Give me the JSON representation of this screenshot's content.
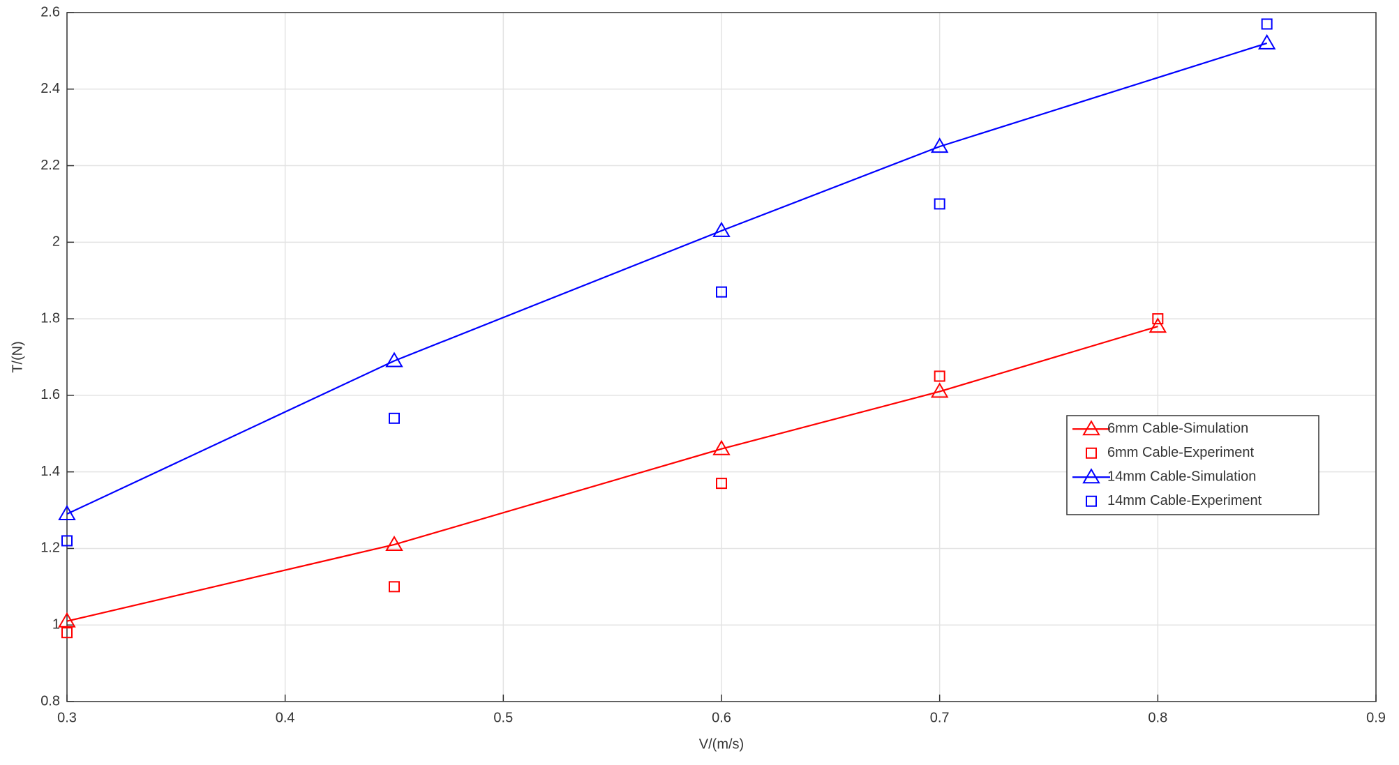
{
  "chart_data": {
    "type": "line",
    "x_label": "V/(m/s)",
    "y_label": "T/(N)",
    "xlim": [
      0.3,
      0.9
    ],
    "xticks": [
      0.3,
      0.4,
      0.5,
      0.6,
      0.7,
      0.8,
      0.9
    ],
    "ylim": [
      0.8,
      2.6
    ],
    "yticks": [
      0.8,
      1,
      1.2,
      1.4,
      1.6,
      1.8,
      2,
      2.2,
      2.4,
      2.6
    ],
    "grid": true,
    "legend_position": "east",
    "series": [
      {
        "name": "6mm Cable-Simulation",
        "color": "#ff0000",
        "line": true,
        "marker": "triangle",
        "x": [
          0.3,
          0.45,
          0.6,
          0.7,
          0.8
        ],
        "values": [
          1.01,
          1.21,
          1.46,
          1.61,
          1.78
        ]
      },
      {
        "name": "6mm Cable-Experiment",
        "color": "#ff0000",
        "line": false,
        "marker": "square",
        "x": [
          0.3,
          0.45,
          0.6,
          0.7,
          0.8
        ],
        "values": [
          0.98,
          1.1,
          1.37,
          1.65,
          1.8
        ]
      },
      {
        "name": "14mm Cable-Simulation",
        "color": "#0000ff",
        "line": true,
        "marker": "triangle",
        "x": [
          0.3,
          0.45,
          0.6,
          0.7,
          0.85
        ],
        "values": [
          1.29,
          1.69,
          2.03,
          2.25,
          2.52
        ]
      },
      {
        "name": "14mm Cable-Experiment",
        "color": "#0000ff",
        "line": false,
        "marker": "square",
        "x": [
          0.3,
          0.45,
          0.6,
          0.7,
          0.85
        ],
        "values": [
          1.22,
          1.54,
          1.87,
          2.1,
          2.57
        ]
      }
    ]
  }
}
